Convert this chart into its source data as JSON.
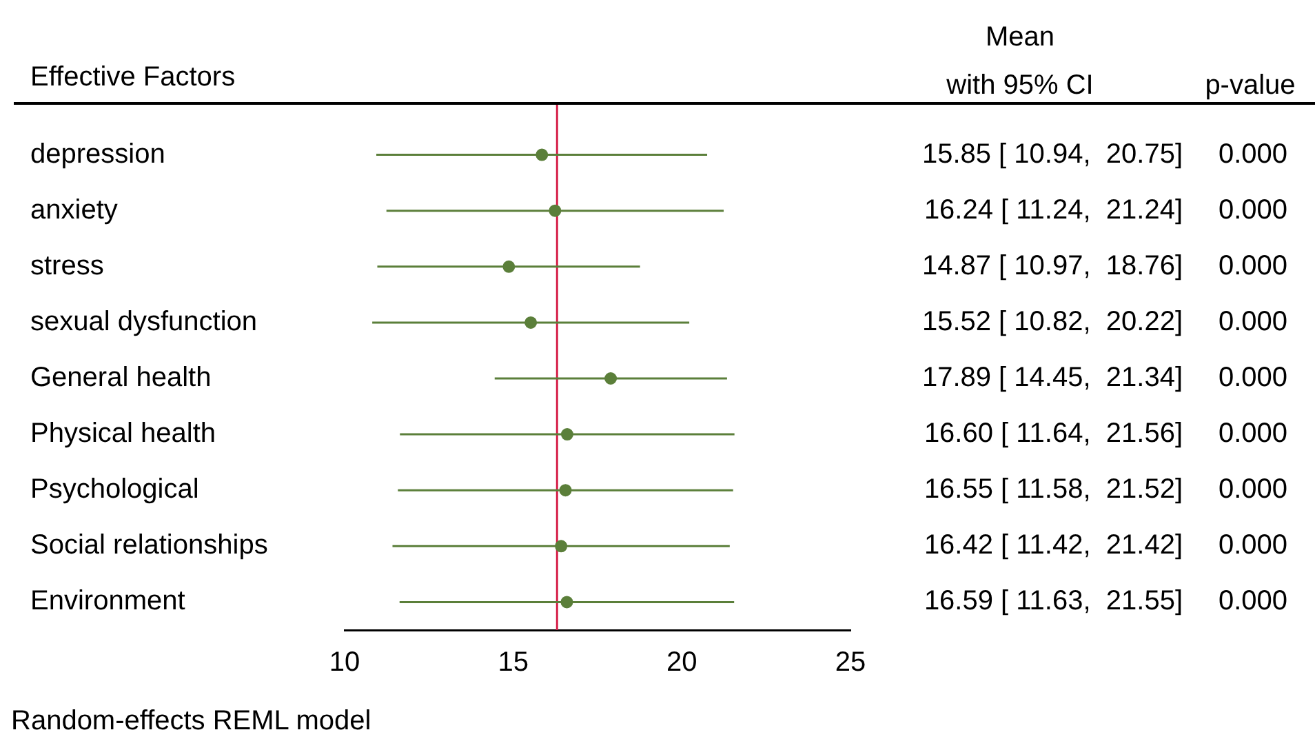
{
  "chart_data": {
    "type": "scatter",
    "orientation": "horizontal",
    "ylabel": "Effective Factors",
    "categories": [
      "depression",
      "anxiety",
      "stress",
      "sexual dysfunction",
      "General health",
      "Physical health",
      "Psychological",
      "Social relationships",
      "Environment"
    ],
    "values": [
      15.85,
      16.24,
      14.87,
      15.52,
      17.89,
      16.6,
      16.55,
      16.42,
      16.59
    ],
    "errors": [
      [
        10.94,
        20.75
      ],
      [
        11.24,
        21.24
      ],
      [
        10.97,
        18.76
      ],
      [
        10.82,
        20.22
      ],
      [
        14.45,
        21.34
      ],
      [
        11.64,
        21.56
      ],
      [
        11.58,
        21.52
      ],
      [
        11.42,
        21.42
      ],
      [
        11.63,
        21.55
      ]
    ],
    "value_labels": [
      "15.85 [ 10.94,  20.75]",
      "16.24 [ 11.24,  21.24]",
      "14.87 [ 10.97,  18.76]",
      "15.52 [ 10.82,  20.22]",
      "17.89 [ 14.45,  21.34]",
      "16.60 [ 11.64,  21.56]",
      "16.55 [ 11.58,  21.52]",
      "16.42 [ 11.42,  21.42]",
      "16.59 [ 11.63,  21.55]"
    ],
    "color": "#5b7f3a",
    "marker": "circle",
    "xlim": [
      10,
      25
    ],
    "xticks": [
      10,
      15,
      20,
      25
    ],
    "grid": false,
    "legend": false,
    "ref_lines": [
      {
        "axis": "x",
        "value": 16.3,
        "color": "#d6204a"
      }
    ],
    "annotations": [
      "Mean\nwith 95% CI",
      "p-value",
      "Random-effects REML model",
      "0.000",
      "0.000",
      "0.000",
      "0.000",
      "0.000",
      "0.000",
      "0.000",
      "0.000",
      "0.000"
    ]
  }
}
